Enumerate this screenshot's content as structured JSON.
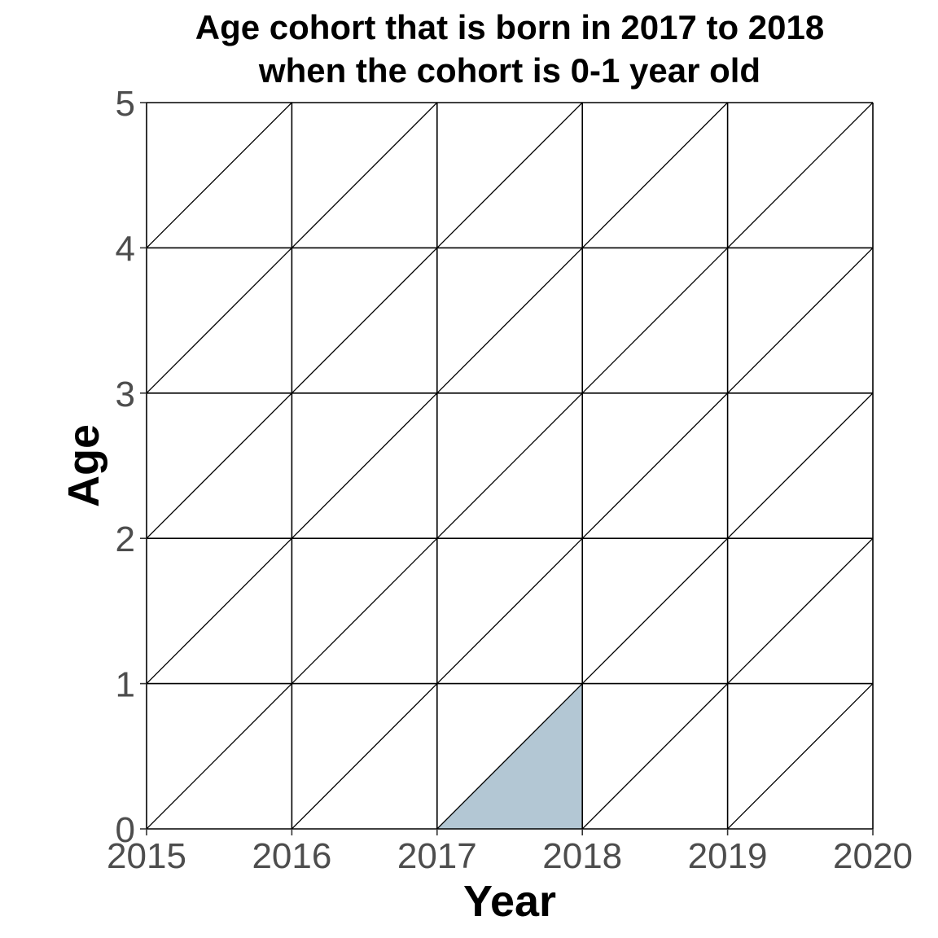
{
  "chart_data": {
    "type": "lexis-diagram",
    "title_lines": [
      "Age cohort that is born in 2017 to 2018",
      "when the cohort is 0-1 year old"
    ],
    "xlabel": "Year",
    "ylabel": "Age",
    "x_ticks": [
      "2015",
      "2016",
      "2017",
      "2018",
      "2019",
      "2020"
    ],
    "y_ticks": [
      "0",
      "1",
      "2",
      "3",
      "4",
      "5"
    ],
    "xlim": [
      2015,
      2020
    ],
    "ylim": [
      0,
      5
    ],
    "grid": true,
    "cohort_diagonals": true,
    "highlight": {
      "polygon": [
        [
          2017,
          0
        ],
        [
          2018,
          0
        ],
        [
          2018,
          1
        ]
      ],
      "color": "#b3c7d4"
    }
  }
}
